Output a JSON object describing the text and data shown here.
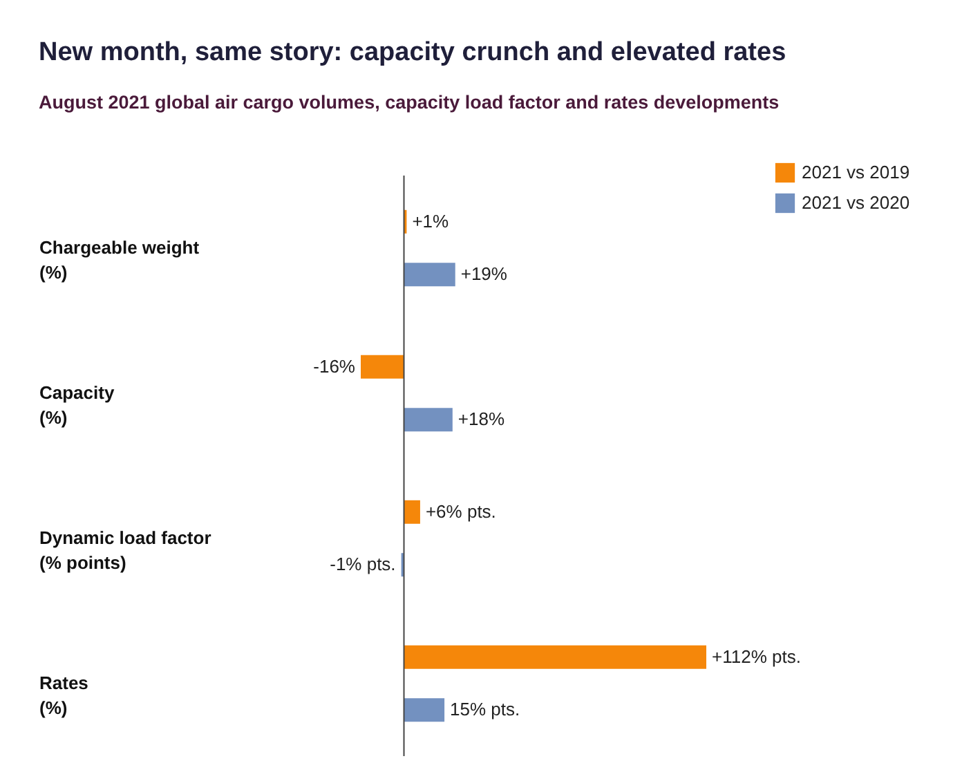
{
  "chart_data": {
    "type": "bar",
    "orientation": "horizontal",
    "title": "New month, same story: capacity crunch and elevated rates",
    "subtitle": "August 2021 global air cargo volumes, capacity load factor and rates developments",
    "categories": [
      "Chargeable weight\n(%)",
      "Capacity\n(%)",
      "Dynamic load factor\n(% points)",
      "Rates\n(%)"
    ],
    "series": [
      {
        "name": "2021 vs 2019",
        "color": "#f5870a",
        "values": [
          1,
          -16,
          6,
          112
        ],
        "value_labels": [
          "+1%",
          "-16%",
          "+6% pts.",
          "+112% pts."
        ]
      },
      {
        "name": "2021 vs 2020",
        "color": "#7391c0",
        "values": [
          19,
          18,
          -1,
          15
        ],
        "value_labels": [
          "+19%",
          "+18%",
          "-1% pts.",
          "15% pts."
        ]
      }
    ],
    "legend": "top right"
  }
}
